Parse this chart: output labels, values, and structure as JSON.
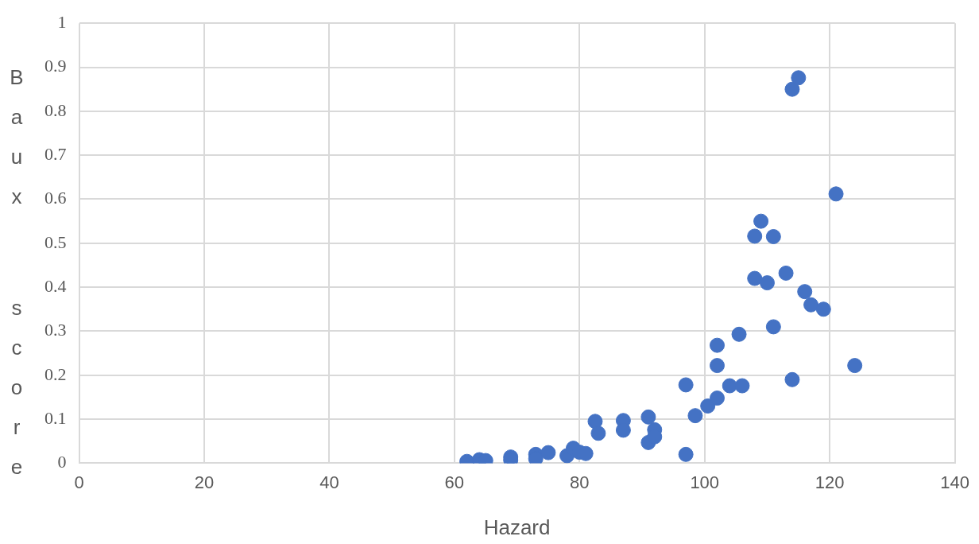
{
  "chart_data": {
    "type": "scatter",
    "xlabel": "Hazard",
    "ylabel": "Baux score",
    "series": [
      {
        "color": "#4472c4",
        "x": [
          62,
          64,
          65,
          69,
          69,
          73,
          73,
          75,
          78,
          79,
          80,
          81,
          82.5,
          83,
          87,
          87,
          91,
          91,
          92,
          92,
          97,
          97,
          98.5,
          100.5,
          102,
          102,
          102,
          104,
          106,
          105.5,
          108,
          108,
          109,
          110,
          111,
          111,
          113,
          114,
          114,
          115,
          116,
          117,
          119,
          121,
          124
        ],
        "values": [
          0.004,
          0.008,
          0.006,
          0.014,
          0.007,
          0.02,
          0.01,
          0.024,
          0.017,
          0.034,
          0.025,
          0.022,
          0.095,
          0.068,
          0.097,
          0.075,
          0.105,
          0.047,
          0.076,
          0.06,
          0.178,
          0.02,
          0.108,
          0.13,
          0.148,
          0.222,
          0.268,
          0.176,
          0.176,
          0.293,
          0.42,
          0.516,
          0.55,
          0.41,
          0.515,
          0.31,
          0.432,
          0.19,
          0.85,
          0.876,
          0.39,
          0.36,
          0.35,
          0.612,
          0.222
        ]
      }
    ],
    "xlim": [
      0,
      140
    ],
    "xticks": [
      0,
      20,
      40,
      60,
      80,
      100,
      120,
      140
    ],
    "ylim": [
      0,
      1
    ],
    "yticks": [
      0,
      0.1,
      0.2,
      0.3,
      0.4,
      0.5,
      0.6,
      0.7,
      0.8,
      0.9,
      1
    ],
    "grid": true,
    "legend": false,
    "marker": "circle"
  }
}
